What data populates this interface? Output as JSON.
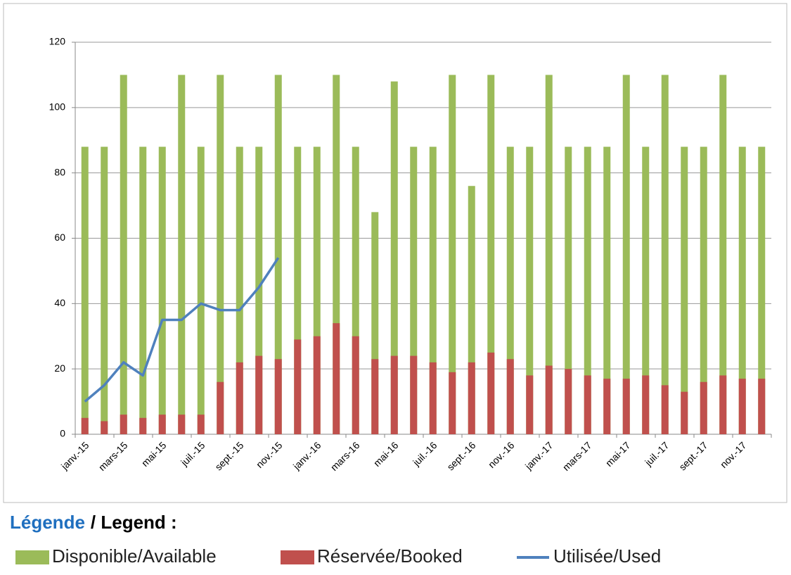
{
  "chart_data": {
    "type": "bar",
    "categories": [
      "janv.-15",
      null,
      "mars-15",
      null,
      "mai-15",
      null,
      "juil.-15",
      null,
      "sept.-15",
      null,
      "nov.-15",
      null,
      "janv.-16",
      null,
      "mars-16",
      null,
      "mai-16",
      null,
      "juil.-16",
      null,
      "sept.-16",
      null,
      "nov.-16",
      null,
      "janv.-17",
      null,
      "mars-17",
      null,
      "mai-17",
      null,
      "juil.-17",
      null,
      "sept.-17",
      null,
      "nov.-17",
      null
    ],
    "series": [
      {
        "name": "Disponible/Available",
        "type": "bar",
        "color": "#9bbb59",
        "values": [
          88,
          88,
          110,
          88,
          88,
          110,
          88,
          110,
          88,
          88,
          110,
          88,
          88,
          110,
          88,
          68,
          108,
          88,
          88,
          110,
          76,
          110,
          88,
          88,
          110,
          88,
          88,
          88,
          110,
          88,
          110,
          88,
          88,
          110,
          88,
          88
        ]
      },
      {
        "name": "Réservée/Booked",
        "type": "bar",
        "color": "#c0504d",
        "values": [
          5,
          4,
          6,
          5,
          6,
          6,
          6,
          16,
          22,
          24,
          23,
          29,
          30,
          34,
          30,
          23,
          24,
          24,
          22,
          19,
          22,
          25,
          23,
          18,
          21,
          20,
          18,
          17,
          17,
          18,
          15,
          13,
          16,
          18,
          17,
          17
        ]
      },
      {
        "name": "Utilisée/Used",
        "type": "line",
        "color": "#4f81bd",
        "values": [
          10,
          15,
          22,
          18,
          35,
          35,
          40,
          38,
          38,
          45,
          54,
          null,
          null,
          null,
          null,
          null,
          null,
          null,
          null,
          null,
          null,
          null,
          null,
          null,
          null,
          null,
          null,
          null,
          null,
          null,
          null,
          null,
          null,
          null,
          null,
          null
        ]
      }
    ],
    "ylim": [
      0,
      120
    ],
    "yticks": [
      0,
      20,
      40,
      60,
      80,
      100,
      120
    ],
    "grid": true,
    "legend_title": [
      "Légende",
      "/ Legend :"
    ]
  }
}
